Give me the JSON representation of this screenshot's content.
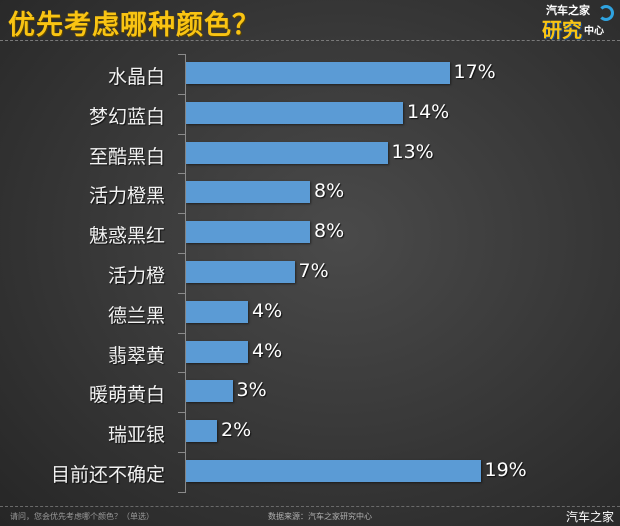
{
  "header": {
    "title": "优先考虑哪种颜色？",
    "logo": {
      "line1": "汽车之家",
      "line2": "研究",
      "line3": "中心"
    }
  },
  "chart_data": {
    "type": "bar",
    "orientation": "horizontal",
    "title": "优先考虑哪种颜色？",
    "categories": [
      "水晶白",
      "梦幻蓝白",
      "至酷黑白",
      "活力橙黑",
      "魅惑黑红",
      "活力橙",
      "德兰黑",
      "翡翠黄",
      "暖萌黄白",
      "瑞亚银",
      "目前还不确定"
    ],
    "values": [
      17,
      14,
      13,
      8,
      8,
      7,
      4,
      4,
      3,
      2,
      19
    ],
    "value_labels": [
      "17%",
      "14%",
      "13%",
      "8%",
      "8%",
      "7%",
      "4%",
      "4%",
      "3%",
      "2%",
      "19%"
    ],
    "unit": "%",
    "xlabel": "",
    "ylabel": "",
    "xlim": [
      0,
      20
    ],
    "grid": false,
    "legend": null,
    "bar_color": "#5b9bd5"
  },
  "footer": {
    "question": "请问，您会优先考虑哪个颜色？（单选）",
    "source": "数据来源：汽车之家研究中心",
    "watermark": "汽车之家"
  },
  "colors": {
    "title": "#f9c413",
    "bar": "#5b9bd5",
    "background": "#3a3a3a",
    "text": "#ffffff"
  }
}
